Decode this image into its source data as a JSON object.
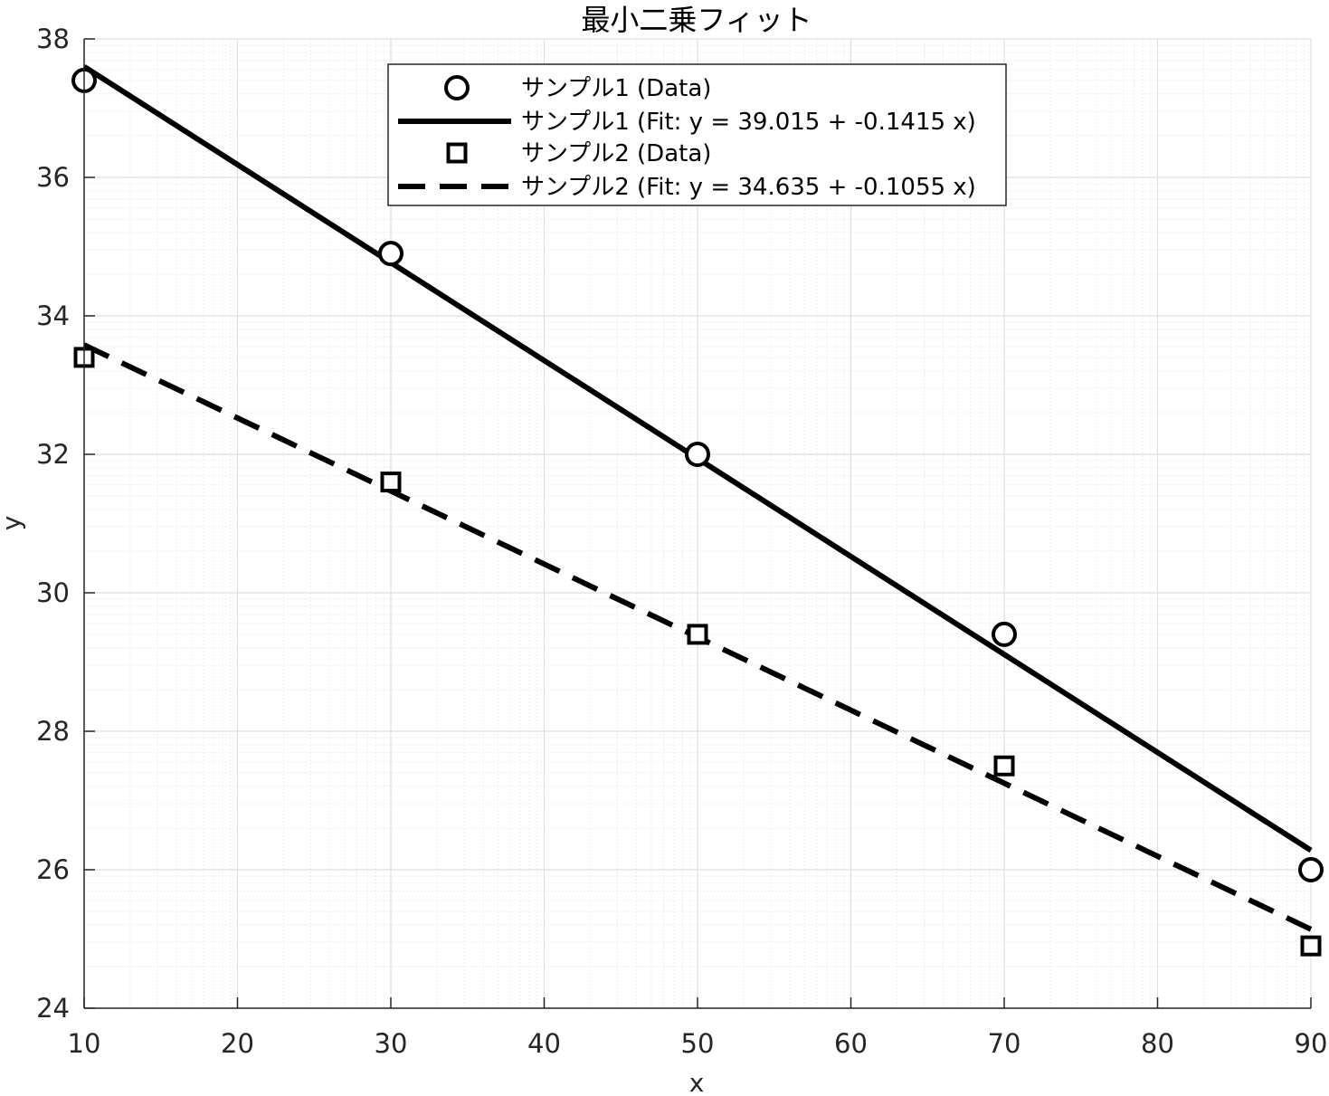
{
  "chart_data": {
    "type": "scatter",
    "title": "最小二乗フィット",
    "xlabel": "x",
    "ylabel": "y",
    "xlim": [
      10,
      90
    ],
    "ylim": [
      24,
      38
    ],
    "xticks": [
      10,
      20,
      30,
      40,
      50,
      60,
      70,
      80,
      90
    ],
    "yticks": [
      24,
      26,
      28,
      30,
      32,
      34,
      36,
      38
    ],
    "xtick_labels": [
      "10",
      "20",
      "30",
      "40",
      "50",
      "60",
      "70",
      "80",
      "90"
    ],
    "ytick_labels": [
      "24",
      "26",
      "28",
      "30",
      "32",
      "34",
      "36",
      "38"
    ],
    "grid": true,
    "minor_grid": true,
    "legend_position": "top-center",
    "series": [
      {
        "name": "サンプル1 (Data)",
        "kind": "markers",
        "marker": "circle",
        "x": [
          10,
          30,
          50,
          70,
          90
        ],
        "y": [
          37.4,
          34.9,
          32.0,
          29.4,
          26.0
        ]
      },
      {
        "name": "サンプル1 (Fit: y = 39.015 + -0.1415 x)",
        "kind": "line",
        "style": "solid",
        "intercept": 39.015,
        "slope": -0.1415
      },
      {
        "name": "サンプル2 (Data)",
        "kind": "markers",
        "marker": "square",
        "x": [
          10,
          30,
          50,
          70,
          90
        ],
        "y": [
          33.4,
          31.6,
          29.4,
          27.5,
          24.9
        ]
      },
      {
        "name": "サンプル2 (Fit: y = 34.635 + -0.1055 x)",
        "kind": "line",
        "style": "dashed",
        "intercept": 34.635,
        "slope": -0.1055
      }
    ]
  },
  "colors": {
    "series": "#000000",
    "major_grid": "#dfdfdf",
    "minor_grid": "#ededed",
    "axis": "#262626"
  }
}
